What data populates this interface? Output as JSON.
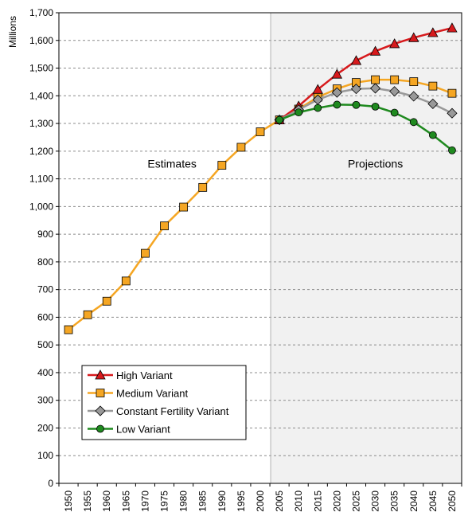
{
  "chart_data": {
    "type": "line",
    "ylabel": "Millions",
    "ylim": [
      0,
      1700
    ],
    "y_ticks": [
      "0",
      "100",
      "200",
      "300",
      "400",
      "500",
      "600",
      "700",
      "800",
      "900",
      "1,000",
      "1,100",
      "1,200",
      "1,300",
      "1,400",
      "1,500",
      "1,600",
      "1,700"
    ],
    "x": [
      1950,
      1955,
      1960,
      1965,
      1970,
      1975,
      1980,
      1985,
      1990,
      1995,
      2000,
      2005,
      2010,
      2015,
      2020,
      2025,
      2030,
      2035,
      2040,
      2045,
      2050
    ],
    "x_tick_labels": [
      "1950",
      "1955",
      "1960",
      "1965",
      "1970",
      "1975",
      "1980",
      "1985",
      "1990",
      "1995",
      "2000",
      "2005",
      "2010",
      "2015",
      "2020",
      "2025",
      "2030",
      "2035",
      "2040",
      "2045",
      "2050"
    ],
    "grid": true,
    "regions": {
      "estimates_label": "Estimates",
      "projections_label": "Projections",
      "projection_start": 2005
    },
    "legend_position": "bottom-left",
    "series": [
      {
        "name": "High Variant",
        "color": "#d7191c",
        "marker": "triangle",
        "x": [
          2005,
          2010,
          2015,
          2020,
          2025,
          2030,
          2035,
          2040,
          2045,
          2050
        ],
        "values": [
          1313,
          1363,
          1423,
          1478,
          1527,
          1561,
          1588,
          1610,
          1628,
          1645
        ]
      },
      {
        "name": "Medium Variant",
        "color": "#f5a623",
        "marker": "square",
        "x": [
          1950,
          1955,
          1960,
          1965,
          1970,
          1975,
          1980,
          1985,
          1990,
          1995,
          2000,
          2005,
          2010,
          2015,
          2020,
          2025,
          2030,
          2035,
          2040,
          2045,
          2050
        ],
        "values": [
          555,
          609,
          658,
          731,
          831,
          930,
          998,
          1069,
          1149,
          1214,
          1270,
          1313,
          1352,
          1395,
          1425,
          1448,
          1458,
          1458,
          1451,
          1435,
          1409
        ]
      },
      {
        "name": "Constant Fertility Variant",
        "color": "#999999",
        "marker": "diamond",
        "x": [
          2005,
          2010,
          2015,
          2020,
          2025,
          2030,
          2035,
          2040,
          2045,
          2050
        ],
        "values": [
          1313,
          1350,
          1386,
          1412,
          1425,
          1427,
          1416,
          1398,
          1371,
          1337
        ]
      },
      {
        "name": "Low Variant",
        "color": "#1f8a1f",
        "marker": "circle",
        "x": [
          2005,
          2010,
          2015,
          2020,
          2025,
          2030,
          2035,
          2040,
          2045,
          2050
        ],
        "values": [
          1313,
          1340,
          1356,
          1368,
          1367,
          1361,
          1339,
          1305,
          1258,
          1203
        ]
      }
    ]
  }
}
